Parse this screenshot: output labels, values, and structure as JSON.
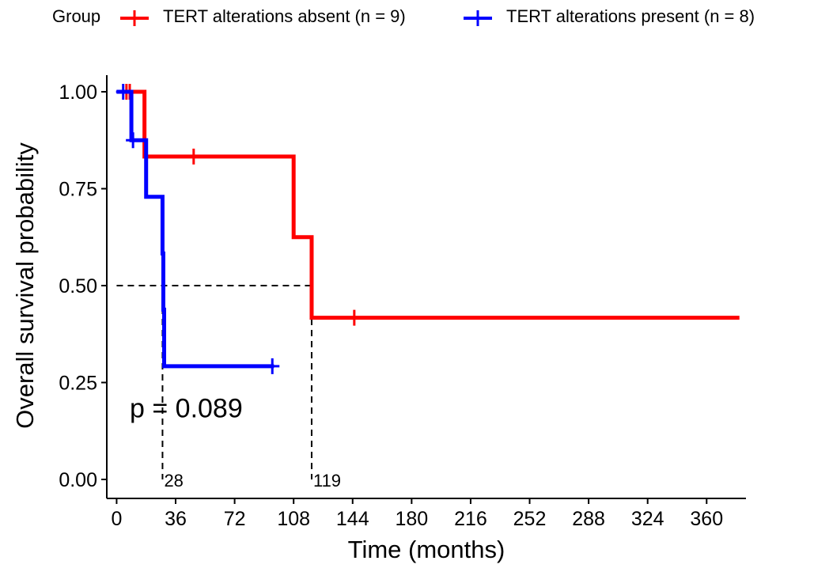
{
  "chart_data": {
    "type": "line",
    "subtype": "kaplan-meier survival curve",
    "xlabel": "Time (months)",
    "ylabel": "Overall survival probability",
    "xlim": [
      -6,
      384
    ],
    "ylim": [
      0,
      1
    ],
    "x_ticks": [
      0,
      36,
      72,
      108,
      144,
      180,
      216,
      252,
      288,
      324,
      360
    ],
    "y_ticks": [
      0,
      0.25,
      0.5,
      0.75,
      1
    ],
    "y_tick_labels": [
      "0.00",
      "0.25",
      "0.50",
      "0.75",
      "1.00"
    ],
    "grid": false,
    "legend": {
      "title": "Group",
      "position": "top",
      "entries": [
        "TERT alterations absent (n = 9)",
        "TERT alterations present (n = 8)"
      ]
    },
    "series": [
      {
        "name": "TERT alterations absent (n = 9)",
        "color": "#ff0000",
        "steps": [
          [
            0,
            1.0
          ],
          [
            17,
            0.833
          ],
          [
            108,
            0.625
          ],
          [
            119,
            0.417
          ],
          [
            380,
            0.417
          ]
        ],
        "censored": [
          [
            6,
            1.0
          ],
          [
            8,
            1.0
          ],
          [
            47,
            0.833
          ],
          [
            145,
            0.417
          ]
        ]
      },
      {
        "name": "TERT alterations present (n = 8)",
        "color": "#0000ff",
        "steps": [
          [
            0,
            1.0
          ],
          [
            9,
            0.875
          ],
          [
            18,
            0.729
          ],
          [
            28,
            0.583
          ],
          [
            28.5,
            0.438
          ],
          [
            29,
            0.292
          ],
          [
            96,
            0.292
          ]
        ],
        "censored": [
          [
            4,
            1.0
          ],
          [
            10,
            0.875
          ],
          [
            95,
            0.292
          ]
        ]
      }
    ],
    "median_lines": {
      "y": 0.5,
      "x_values": [
        28,
        119
      ],
      "labels": [
        "28",
        "119"
      ]
    },
    "annotation": {
      "text": "p = 0.089",
      "x": 8,
      "y": 0.185
    }
  }
}
